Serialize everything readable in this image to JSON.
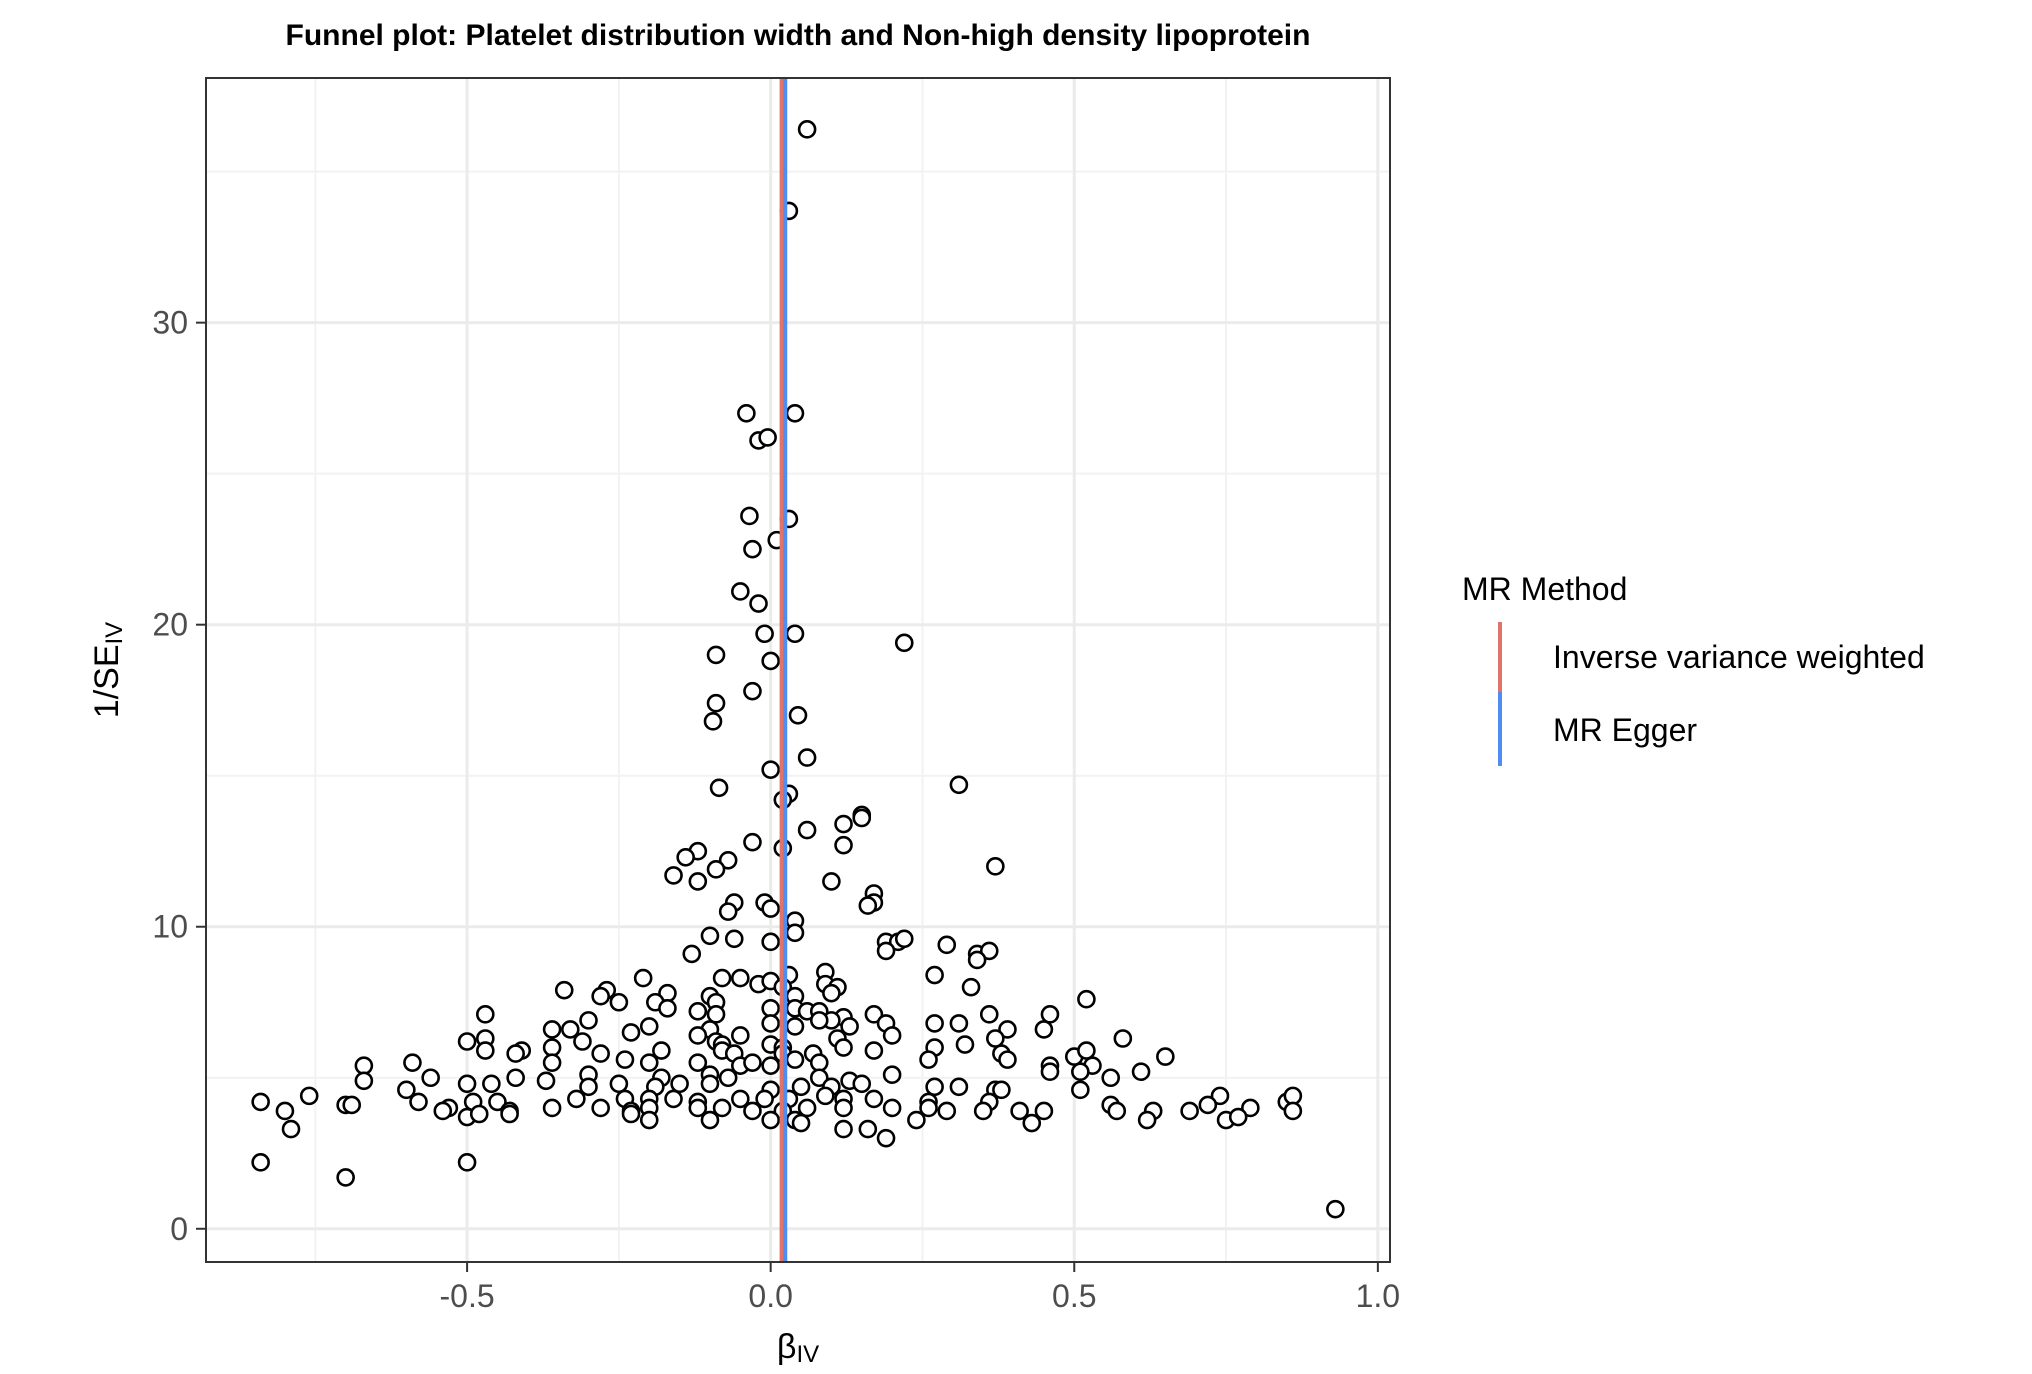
{
  "chart_data": {
    "type": "scatter",
    "title": "Funnel plot: Platelet distribution width and Non-high density lipoprotein",
    "xlabel": {
      "main": "β",
      "sub": "IV"
    },
    "ylabel": {
      "main": "1/SE",
      "sub": "IV"
    },
    "xlim": [
      -0.93,
      1.02
    ],
    "ylim": [
      -1.1,
      38.1
    ],
    "x_ticks": [
      -0.5,
      0.0,
      0.5,
      1.0
    ],
    "x_tick_labels": [
      "-0.5",
      "0.0",
      "0.5",
      "1.0"
    ],
    "y_ticks": [
      0,
      10,
      20,
      30
    ],
    "y_tick_labels": [
      "0",
      "10",
      "20",
      "30"
    ],
    "grid": true,
    "legend": {
      "title": "MR Method",
      "position": "right",
      "entries": [
        {
          "label": "Inverse variance weighted",
          "color": "#E0736A"
        },
        {
          "label": "MR Egger",
          "color": "#4F8EF0"
        }
      ]
    },
    "vlines": [
      {
        "method": "Inverse variance weighted",
        "x": 0.018,
        "color": "#E0736A"
      },
      {
        "method": "MR Egger",
        "x": 0.024,
        "color": "#4F8EF0"
      }
    ],
    "points": [
      [
        0.06,
        36.4
      ],
      [
        0.03,
        33.7
      ],
      [
        -0.04,
        27.0
      ],
      [
        0.04,
        27.0
      ],
      [
        -0.02,
        26.1
      ],
      [
        -0.005,
        26.2
      ],
      [
        -0.035,
        23.6
      ],
      [
        0.03,
        23.5
      ],
      [
        0.01,
        22.8
      ],
      [
        -0.03,
        22.5
      ],
      [
        -0.05,
        21.1
      ],
      [
        -0.02,
        20.7
      ],
      [
        -0.01,
        19.7
      ],
      [
        0.04,
        19.7
      ],
      [
        -0.09,
        19.0
      ],
      [
        0.0,
        18.8
      ],
      [
        0.22,
        19.4
      ],
      [
        -0.03,
        17.8
      ],
      [
        -0.09,
        17.4
      ],
      [
        -0.095,
        16.8
      ],
      [
        0.045,
        17.0
      ],
      [
        0.06,
        15.6
      ],
      [
        0.0,
        15.2
      ],
      [
        0.31,
        14.7
      ],
      [
        -0.085,
        14.6
      ],
      [
        0.03,
        14.4
      ],
      [
        0.02,
        14.2
      ],
      [
        0.15,
        13.7
      ],
      [
        0.15,
        13.6
      ],
      [
        0.12,
        13.4
      ],
      [
        0.06,
        13.2
      ],
      [
        -0.03,
        12.8
      ],
      [
        0.02,
        12.6
      ],
      [
        0.12,
        12.7
      ],
      [
        -0.12,
        12.5
      ],
      [
        -0.14,
        12.3
      ],
      [
        -0.07,
        12.2
      ],
      [
        -0.09,
        11.9
      ],
      [
        0.37,
        12.0
      ],
      [
        -0.16,
        11.7
      ],
      [
        -0.12,
        11.5
      ],
      [
        0.1,
        11.5
      ],
      [
        0.17,
        11.1
      ],
      [
        0.17,
        10.8
      ],
      [
        0.16,
        10.7
      ],
      [
        -0.01,
        10.8
      ],
      [
        -0.06,
        10.8
      ],
      [
        0.0,
        10.6
      ],
      [
        -0.07,
        10.5
      ],
      [
        0.04,
        10.2
      ],
      [
        0.04,
        9.8
      ],
      [
        -0.1,
        9.7
      ],
      [
        -0.06,
        9.6
      ],
      [
        0.0,
        9.5
      ],
      [
        0.19,
        9.5
      ],
      [
        0.21,
        9.5
      ],
      [
        0.22,
        9.6
      ],
      [
        0.19,
        9.2
      ],
      [
        0.29,
        9.4
      ],
      [
        0.34,
        9.1
      ],
      [
        0.36,
        9.2
      ],
      [
        0.34,
        8.9
      ],
      [
        -0.13,
        9.1
      ],
      [
        0.27,
        8.4
      ],
      [
        0.09,
        8.5
      ],
      [
        0.03,
        8.4
      ],
      [
        -0.21,
        8.3
      ],
      [
        -0.08,
        8.3
      ],
      [
        -0.05,
        8.3
      ],
      [
        -0.02,
        8.1
      ],
      [
        0.0,
        8.2
      ],
      [
        0.02,
        8.0
      ],
      [
        0.09,
        8.1
      ],
      [
        0.11,
        8.0
      ],
      [
        0.33,
        8.0
      ],
      [
        -0.27,
        7.9
      ],
      [
        -0.34,
        7.9
      ],
      [
        -0.28,
        7.7
      ],
      [
        -0.17,
        7.8
      ],
      [
        -0.1,
        7.7
      ],
      [
        -0.09,
        7.5
      ],
      [
        0.04,
        7.7
      ],
      [
        0.1,
        7.8
      ],
      [
        0.52,
        7.6
      ],
      [
        -0.19,
        7.5
      ],
      [
        -0.25,
        7.5
      ],
      [
        -0.17,
        7.3
      ],
      [
        -0.12,
        7.2
      ],
      [
        -0.09,
        7.1
      ],
      [
        0.0,
        7.3
      ],
      [
        0.04,
        7.3
      ],
      [
        0.06,
        7.2
      ],
      [
        0.08,
        7.2
      ],
      [
        0.17,
        7.1
      ],
      [
        0.36,
        7.1
      ],
      [
        0.46,
        7.1
      ],
      [
        -0.47,
        7.1
      ],
      [
        0.12,
        7.0
      ],
      [
        0.1,
        6.9
      ],
      [
        0.08,
        6.9
      ],
      [
        -0.3,
        6.9
      ],
      [
        0.0,
        6.8
      ],
      [
        0.04,
        6.7
      ],
      [
        0.13,
        6.7
      ],
      [
        0.19,
        6.8
      ],
      [
        0.27,
        6.8
      ],
      [
        0.31,
        6.8
      ],
      [
        0.39,
        6.6
      ],
      [
        0.45,
        6.6
      ],
      [
        -0.33,
        6.6
      ],
      [
        -0.36,
        6.6
      ],
      [
        -0.2,
        6.7
      ],
      [
        -0.23,
        6.5
      ],
      [
        -0.1,
        6.6
      ],
      [
        -0.12,
        6.4
      ],
      [
        -0.05,
        6.4
      ],
      [
        0.11,
        6.3
      ],
      [
        0.2,
        6.4
      ],
      [
        0.37,
        6.3
      ],
      [
        0.58,
        6.3
      ],
      [
        -0.47,
        6.3
      ],
      [
        -0.5,
        6.2
      ],
      [
        -0.31,
        6.2
      ],
      [
        -0.09,
        6.2
      ],
      [
        -0.08,
        6.1
      ],
      [
        0.0,
        6.1
      ],
      [
        0.02,
        6.0
      ],
      [
        0.12,
        6.0
      ],
      [
        0.27,
        6.0
      ],
      [
        0.32,
        6.1
      ],
      [
        -0.36,
        6.0
      ],
      [
        -0.41,
        5.9
      ],
      [
        -0.47,
        5.9
      ],
      [
        -0.42,
        5.8
      ],
      [
        -0.28,
        5.8
      ],
      [
        -0.18,
        5.9
      ],
      [
        -0.08,
        5.9
      ],
      [
        -0.06,
        5.8
      ],
      [
        0.02,
        5.8
      ],
      [
        0.07,
        5.8
      ],
      [
        0.17,
        5.9
      ],
      [
        0.38,
        5.8
      ],
      [
        0.39,
        5.6
      ],
      [
        0.5,
        5.7
      ],
      [
        0.52,
        5.9
      ],
      [
        0.65,
        5.7
      ],
      [
        -0.67,
        5.4
      ],
      [
        -0.59,
        5.5
      ],
      [
        -0.36,
        5.5
      ],
      [
        -0.24,
        5.6
      ],
      [
        -0.2,
        5.5
      ],
      [
        -0.12,
        5.5
      ],
      [
        -0.05,
        5.4
      ],
      [
        -0.03,
        5.5
      ],
      [
        0.0,
        5.4
      ],
      [
        0.04,
        5.6
      ],
      [
        0.08,
        5.5
      ],
      [
        0.26,
        5.6
      ],
      [
        0.46,
        5.4
      ],
      [
        0.53,
        5.4
      ],
      [
        0.46,
        5.2
      ],
      [
        0.51,
        5.2
      ],
      [
        -0.56,
        5.0
      ],
      [
        -0.42,
        5.0
      ],
      [
        -0.3,
        5.1
      ],
      [
        -0.18,
        5.0
      ],
      [
        -0.1,
        5.1
      ],
      [
        -0.07,
        5.0
      ],
      [
        0.08,
        5.0
      ],
      [
        0.13,
        4.9
      ],
      [
        0.2,
        5.1
      ],
      [
        0.56,
        5.0
      ],
      [
        0.61,
        5.2
      ],
      [
        -0.67,
        4.9
      ],
      [
        -0.6,
        4.6
      ],
      [
        -0.5,
        4.8
      ],
      [
        -0.46,
        4.8
      ],
      [
        -0.37,
        4.9
      ],
      [
        -0.3,
        4.7
      ],
      [
        -0.25,
        4.8
      ],
      [
        -0.19,
        4.7
      ],
      [
        -0.15,
        4.8
      ],
      [
        -0.1,
        4.8
      ],
      [
        0.0,
        4.6
      ],
      [
        0.05,
        4.7
      ],
      [
        0.1,
        4.7
      ],
      [
        0.15,
        4.8
      ],
      [
        0.27,
        4.7
      ],
      [
        0.31,
        4.7
      ],
      [
        0.37,
        4.6
      ],
      [
        0.38,
        4.6
      ],
      [
        0.51,
        4.6
      ],
      [
        -0.76,
        4.4
      ],
      [
        -0.58,
        4.2
      ],
      [
        -0.49,
        4.2
      ],
      [
        -0.45,
        4.2
      ],
      [
        -0.32,
        4.3
      ],
      [
        -0.24,
        4.3
      ],
      [
        -0.2,
        4.3
      ],
      [
        -0.16,
        4.3
      ],
      [
        -0.12,
        4.2
      ],
      [
        -0.05,
        4.3
      ],
      [
        -0.01,
        4.3
      ],
      [
        0.03,
        4.3
      ],
      [
        0.09,
        4.4
      ],
      [
        0.12,
        4.3
      ],
      [
        0.17,
        4.3
      ],
      [
        0.26,
        4.2
      ],
      [
        0.36,
        4.2
      ],
      [
        0.56,
        4.1
      ],
      [
        0.74,
        4.4
      ],
      [
        0.72,
        4.1
      ],
      [
        0.85,
        4.2
      ],
      [
        0.86,
        4.4
      ],
      [
        -0.84,
        4.2
      ],
      [
        -0.7,
        4.1
      ],
      [
        -0.53,
        4.0
      ],
      [
        -0.43,
        3.9
      ],
      [
        -0.36,
        4.0
      ],
      [
        -0.28,
        4.0
      ],
      [
        -0.23,
        3.9
      ],
      [
        -0.2,
        4.0
      ],
      [
        -0.12,
        4.0
      ],
      [
        -0.08,
        4.0
      ],
      [
        -0.03,
        3.9
      ],
      [
        0.02,
        3.9
      ],
      [
        0.06,
        4.0
      ],
      [
        0.12,
        4.0
      ],
      [
        0.2,
        4.0
      ],
      [
        0.26,
        4.0
      ],
      [
        0.29,
        3.9
      ],
      [
        0.35,
        3.9
      ],
      [
        0.41,
        3.9
      ],
      [
        0.45,
        3.9
      ],
      [
        0.57,
        3.9
      ],
      [
        0.63,
        3.9
      ],
      [
        0.69,
        3.9
      ],
      [
        0.79,
        4.0
      ],
      [
        0.86,
        3.9
      ],
      [
        -0.8,
        3.9
      ],
      [
        -0.69,
        4.1
      ],
      [
        -0.54,
        3.9
      ],
      [
        -0.5,
        3.7
      ],
      [
        -0.48,
        3.8
      ],
      [
        -0.43,
        3.8
      ],
      [
        -0.23,
        3.8
      ],
      [
        -0.2,
        3.6
      ],
      [
        -0.1,
        3.6
      ],
      [
        0.0,
        3.6
      ],
      [
        0.04,
        3.6
      ],
      [
        0.05,
        3.5
      ],
      [
        0.12,
        3.3
      ],
      [
        0.16,
        3.3
      ],
      [
        0.24,
        3.6
      ],
      [
        0.43,
        3.5
      ],
      [
        0.62,
        3.6
      ],
      [
        0.75,
        3.6
      ],
      [
        0.77,
        3.7
      ],
      [
        0.19,
        3.0
      ],
      [
        -0.79,
        3.3
      ],
      [
        -0.84,
        2.2
      ],
      [
        -0.5,
        2.2
      ],
      [
        -0.7,
        1.7
      ],
      [
        0.93,
        0.65
      ]
    ]
  }
}
